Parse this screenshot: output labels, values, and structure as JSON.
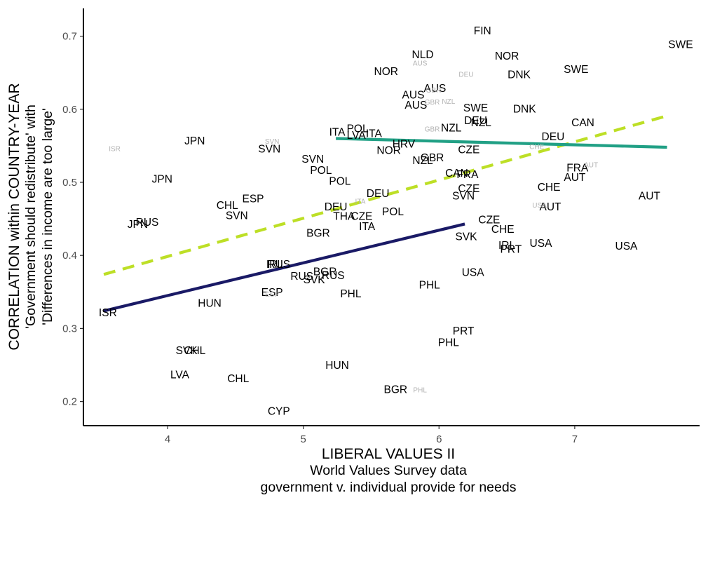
{
  "chart_data": {
    "type": "scatter",
    "xlabel": [
      "LIBERAL VALUES II",
      "World Values Survey data",
      "government v. individual provide for needs"
    ],
    "ylabel": [
      "CORRELATION within COUNTRY-YEAR",
      "'Government should redistribute' with",
      "'Differences in income are too large'"
    ],
    "xlim": [
      3.38,
      7.92
    ],
    "ylim": [
      0.167,
      0.738
    ],
    "x_ticks": [
      4,
      5,
      6,
      7
    ],
    "x_tick_labels": [
      "4",
      "5",
      "6",
      "7"
    ],
    "y_ticks": [
      0.2,
      0.3,
      0.4,
      0.5,
      0.6,
      0.7
    ],
    "y_tick_labels": [
      "0.2",
      "0.3",
      "0.4",
      "0.5",
      "0.6",
      "0.7"
    ],
    "grid": false,
    "legend": "none",
    "colors": {
      "lime": "#bddf26",
      "teal": "#21a085",
      "navy": "#1a1a66",
      "faint": "#b3b3b3"
    },
    "series": [
      {
        "style": "solid",
        "color": "#1a1a66",
        "line": {
          "x": [
            3.53,
            6.19
          ],
          "y": [
            0.324,
            0.443
          ]
        }
      },
      {
        "style": "dashed",
        "color": "#bddf26",
        "line": {
          "x": [
            3.53,
            7.68
          ],
          "y": [
            0.374,
            0.591
          ]
        }
      },
      {
        "style": "solid",
        "color": "#21a085",
        "line": {
          "x": [
            5.24,
            7.68
          ],
          "y": [
            0.56,
            0.548
          ]
        }
      }
    ],
    "points": [
      {
        "label": "FIN",
        "x": 6.32,
        "y": 0.708
      },
      {
        "label": "SWE",
        "x": 7.78,
        "y": 0.689
      },
      {
        "label": "NLD",
        "x": 5.88,
        "y": 0.675
      },
      {
        "label": "NOR",
        "x": 6.5,
        "y": 0.673
      },
      {
        "label": "SWE",
        "x": 7.01,
        "y": 0.655
      },
      {
        "label": "NOR",
        "x": 5.61,
        "y": 0.652
      },
      {
        "label": "DNK",
        "x": 6.59,
        "y": 0.648
      },
      {
        "label": "AUS",
        "x": 5.97,
        "y": 0.629
      },
      {
        "label": "AUS",
        "x": 5.81,
        "y": 0.62
      },
      {
        "label": "AUS",
        "x": 5.83,
        "y": 0.606
      },
      {
        "label": "SWE",
        "x": 6.27,
        "y": 0.602
      },
      {
        "label": "DNK",
        "x": 6.63,
        "y": 0.601
      },
      {
        "label": "DEU",
        "x": 6.27,
        "y": 0.585
      },
      {
        "label": "NZL",
        "x": 6.31,
        "y": 0.582
      },
      {
        "label": "CAN",
        "x": 7.06,
        "y": 0.582
      },
      {
        "label": "NZL",
        "x": 6.09,
        "y": 0.575
      },
      {
        "label": "POL",
        "x": 5.4,
        "y": 0.574
      },
      {
        "label": "ITA",
        "x": 5.25,
        "y": 0.569
      },
      {
        "label": "ITA",
        "x": 5.52,
        "y": 0.567
      },
      {
        "label": "LVA",
        "x": 5.39,
        "y": 0.565
      },
      {
        "label": "DEU",
        "x": 6.84,
        "y": 0.563
      },
      {
        "label": "JPN",
        "x": 4.2,
        "y": 0.557
      },
      {
        "label": "HRV",
        "x": 5.74,
        "y": 0.553
      },
      {
        "label": "SVN",
        "x": 4.75,
        "y": 0.546
      },
      {
        "label": "NOR",
        "x": 5.63,
        "y": 0.544
      },
      {
        "label": "CZE",
        "x": 6.22,
        "y": 0.545
      },
      {
        "label": "GBR",
        "x": 5.95,
        "y": 0.534
      },
      {
        "label": "SVN",
        "x": 5.07,
        "y": 0.532
      },
      {
        "label": "NZL",
        "x": 5.88,
        "y": 0.53
      },
      {
        "label": "FRA",
        "x": 7.02,
        "y": 0.52
      },
      {
        "label": "POL",
        "x": 5.13,
        "y": 0.517
      },
      {
        "label": "CAN",
        "x": 6.13,
        "y": 0.513
      },
      {
        "label": "FRA",
        "x": 6.21,
        "y": 0.511
      },
      {
        "label": "AUT",
        "x": 7.0,
        "y": 0.507
      },
      {
        "label": "JPN",
        "x": 3.96,
        "y": 0.505
      },
      {
        "label": "POL",
        "x": 5.27,
        "y": 0.502
      },
      {
        "label": "CZE",
        "x": 6.22,
        "y": 0.492
      },
      {
        "label": "CHE",
        "x": 6.81,
        "y": 0.494
      },
      {
        "label": "DEU",
        "x": 5.55,
        "y": 0.485
      },
      {
        "label": "AUT",
        "x": 7.55,
        "y": 0.482
      },
      {
        "label": "ESP",
        "x": 4.63,
        "y": 0.478
      },
      {
        "label": "SVN",
        "x": 6.18,
        "y": 0.482
      },
      {
        "label": "CHL",
        "x": 4.44,
        "y": 0.469
      },
      {
        "label": "DEU",
        "x": 5.24,
        "y": 0.467
      },
      {
        "label": "AUT",
        "x": 6.82,
        "y": 0.467
      },
      {
        "label": "POL",
        "x": 5.66,
        "y": 0.46
      },
      {
        "label": "SVN",
        "x": 4.51,
        "y": 0.455
      },
      {
        "label": "THA",
        "x": 5.3,
        "y": 0.454
      },
      {
        "label": "CZE",
        "x": 5.43,
        "y": 0.454
      },
      {
        "label": "RUS",
        "x": 3.85,
        "y": 0.446
      },
      {
        "label": "JPN",
        "x": 3.78,
        "y": 0.443
      },
      {
        "label": "ITA",
        "x": 5.47,
        "y": 0.44
      },
      {
        "label": "CZE",
        "x": 6.37,
        "y": 0.449
      },
      {
        "label": "CHE",
        "x": 6.47,
        "y": 0.436
      },
      {
        "label": "BGR",
        "x": 5.11,
        "y": 0.431
      },
      {
        "label": "SVK",
        "x": 6.2,
        "y": 0.426
      },
      {
        "label": "USA",
        "x": 6.75,
        "y": 0.417
      },
      {
        "label": "IRL",
        "x": 6.5,
        "y": 0.414
      },
      {
        "label": "PRT",
        "x": 6.53,
        "y": 0.409
      },
      {
        "label": "USA",
        "x": 7.38,
        "y": 0.413
      },
      {
        "label": "IRL",
        "x": 4.79,
        "y": 0.388
      },
      {
        "label": "RUS",
        "x": 4.82,
        "y": 0.388
      },
      {
        "label": "BGR",
        "x": 5.16,
        "y": 0.378
      },
      {
        "label": "USA",
        "x": 6.25,
        "y": 0.377
      },
      {
        "label": "RUS",
        "x": 4.99,
        "y": 0.372
      },
      {
        "label": "RUS",
        "x": 5.22,
        "y": 0.373
      },
      {
        "label": "SVK",
        "x": 5.08,
        "y": 0.367
      },
      {
        "label": "PHL",
        "x": 5.93,
        "y": 0.36
      },
      {
        "label": "ESP",
        "x": 4.77,
        "y": 0.35
      },
      {
        "label": "PHL",
        "x": 5.35,
        "y": 0.348
      },
      {
        "label": "HUN",
        "x": 4.31,
        "y": 0.335
      },
      {
        "label": "ISR",
        "x": 3.56,
        "y": 0.322
      },
      {
        "label": "PRT",
        "x": 6.18,
        "y": 0.297
      },
      {
        "label": "PHL",
        "x": 6.07,
        "y": 0.281
      },
      {
        "label": "SVK",
        "x": 4.14,
        "y": 0.27
      },
      {
        "label": "CHL",
        "x": 4.2,
        "y": 0.27
      },
      {
        "label": "HUN",
        "x": 5.25,
        "y": 0.25
      },
      {
        "label": "LVA",
        "x": 4.09,
        "y": 0.237
      },
      {
        "label": "CHL",
        "x": 4.52,
        "y": 0.232
      },
      {
        "label": "BGR",
        "x": 5.68,
        "y": 0.217
      },
      {
        "label": "CYP",
        "x": 4.82,
        "y": 0.187
      },
      {
        "label": "AUS",
        "x": 5.86,
        "y": 0.663,
        "faint": true
      },
      {
        "label": "DEU",
        "x": 6.2,
        "y": 0.648,
        "faint": true
      },
      {
        "label": "GBR",
        "x": 5.96,
        "y": 0.626,
        "faint": true
      },
      {
        "label": "NZL",
        "x": 6.07,
        "y": 0.611,
        "faint": true
      },
      {
        "label": "GBR",
        "x": 5.95,
        "y": 0.61,
        "faint": true
      },
      {
        "label": "GBR",
        "x": 5.95,
        "y": 0.573,
        "faint": true
      },
      {
        "label": "SVN",
        "x": 4.77,
        "y": 0.556,
        "faint": true
      },
      {
        "label": "ISR",
        "x": 3.61,
        "y": 0.546,
        "faint": true
      },
      {
        "label": "CHE",
        "x": 6.72,
        "y": 0.549,
        "faint": true
      },
      {
        "label": "AUT",
        "x": 7.12,
        "y": 0.524,
        "faint": true
      },
      {
        "label": "ITA",
        "x": 5.42,
        "y": 0.474,
        "faint": true
      },
      {
        "label": "USA",
        "x": 6.74,
        "y": 0.469,
        "faint": true
      },
      {
        "label": "ESP",
        "x": 4.77,
        "y": 0.347,
        "faint": true
      },
      {
        "label": "PHL",
        "x": 5.86,
        "y": 0.216,
        "faint": true
      }
    ]
  }
}
